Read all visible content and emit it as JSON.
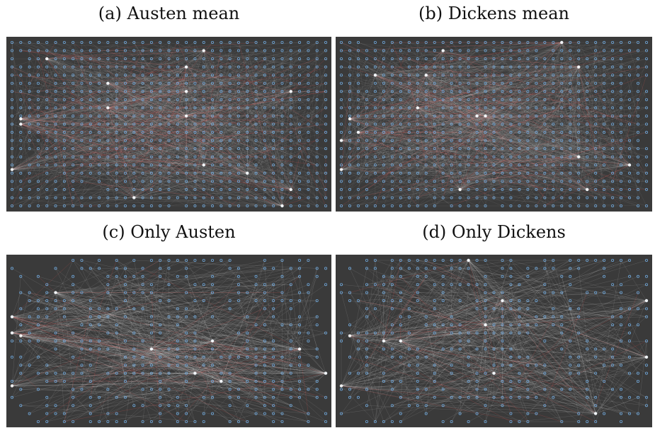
{
  "figure": {
    "background": "#3a3a3a",
    "node_color": "#6fa8dc",
    "edge_color": "#ffffff",
    "accent_edge_color": "#d9534f",
    "panels": [
      {
        "id": "a",
        "caption": "(a) Austen mean",
        "density": "dense",
        "hubs_seed": 11
      },
      {
        "id": "b",
        "caption": "(b) Dickens mean",
        "density": "dense",
        "hubs_seed": 23
      },
      {
        "id": "c",
        "caption": "(c) Only Austen",
        "density": "sparse",
        "hubs_seed": 37
      },
      {
        "id": "d",
        "caption": "(d) Only Dickens",
        "density": "sparse",
        "hubs_seed": 53
      }
    ]
  }
}
